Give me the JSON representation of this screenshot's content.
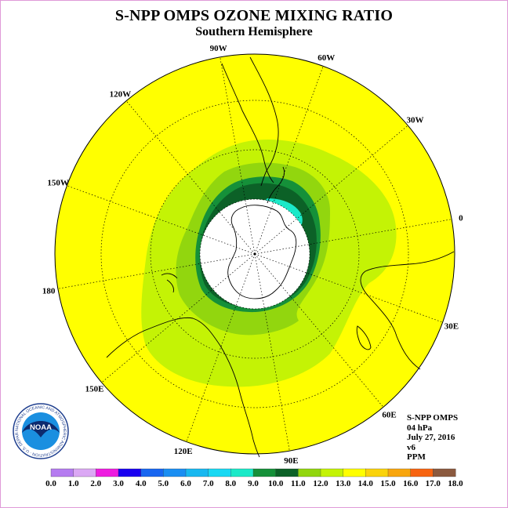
{
  "title": "S-NPP OMPS OZONE MIXING RATIO",
  "subtitle": "Southern Hemisphere",
  "longitude_labels": [
    "90W",
    "60W",
    "30W",
    "0",
    "30E",
    "60E",
    "90E",
    "120E",
    "150E",
    "180",
    "150W",
    "120W"
  ],
  "info": {
    "product": "S-NPP OMPS",
    "level": "04 hPa",
    "date": "July 27, 2016",
    "version": "v6",
    "units": "PPM"
  },
  "colorbar": {
    "ticks": [
      "0.0",
      "1.0",
      "2.0",
      "3.0",
      "4.0",
      "5.0",
      "6.0",
      "7.0",
      "8.0",
      "9.0",
      "10.0",
      "11.0",
      "12.0",
      "13.0",
      "14.0",
      "15.0",
      "16.0",
      "17.0",
      "18.0"
    ],
    "colors": [
      "#b57cf0",
      "#dba8f4",
      "#ee1ce0",
      "#1a00f0",
      "#1866f0",
      "#1a8ef2",
      "#18b8f0",
      "#19d9f3",
      "#1be9c8",
      "#159039",
      "#0c6127",
      "#92d60e",
      "#c4f305",
      "#ffff00",
      "#fad30b",
      "#f8a60e",
      "#f76411",
      "#ee000a",
      "#8b5a3f"
    ]
  },
  "logo": {
    "text": "NOAA",
    "ring_text": "NATIONAL OCEANIC AND ATMOSPHERIC ADMINISTRATION · U.S. DEPARTMENT OF COMMERCE"
  },
  "colors": {
    "background_field": "#ffff00",
    "light_green": "#c4f305",
    "green": "#92d60e",
    "dark_green": "#0c6127",
    "medium_green": "#159039",
    "cyan": "#1be9c8",
    "no_data": "#ffffff",
    "frame_border": "#e09ad8"
  }
}
